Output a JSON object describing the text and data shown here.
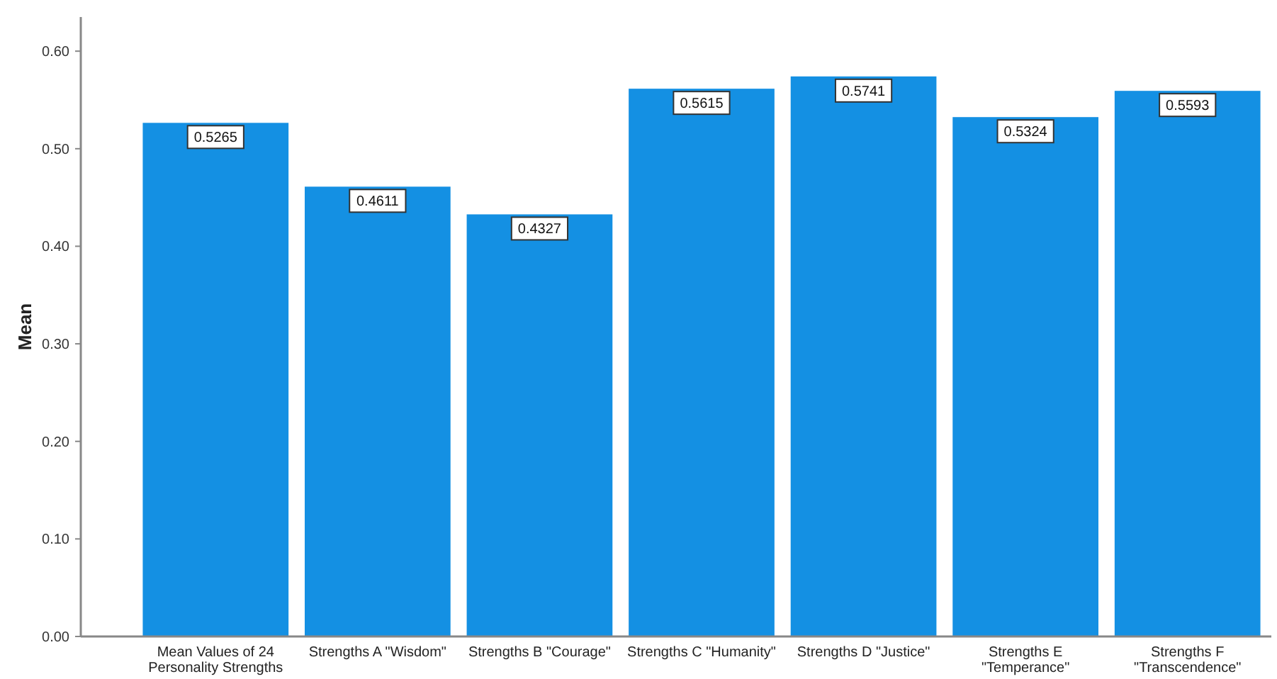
{
  "chart_data": {
    "type": "bar",
    "ylabel": "Mean",
    "categories": [
      "Mean Values of 24 Personality Strengths",
      "Strengths A \"Wisdom\"",
      "Strengths B \"Courage\"",
      "Strengths C \"Humanity\"",
      "Strengths D \"Justice\"",
      "Strengths E \"Temperance\"",
      "Strengths F \"Transcendence\""
    ],
    "values": [
      0.5265,
      0.4611,
      0.4327,
      0.5615,
      0.5741,
      0.5324,
      0.5593
    ],
    "color": "#1490e3",
    "data_labels": true,
    "grid": false,
    "ylim": [
      0,
      0.635
    ],
    "yticks": [
      {
        "value": 0,
        "label": "0.00"
      },
      {
        "value": 0.1,
        "label": "0.10"
      },
      {
        "value": 0.2,
        "label": "0.20"
      },
      {
        "value": 0.3,
        "label": "0.30"
      },
      {
        "value": 0.4,
        "label": "0.40"
      },
      {
        "value": 0.5,
        "label": "0.50"
      },
      {
        "value": 0.6,
        "label": "0.60"
      }
    ]
  }
}
